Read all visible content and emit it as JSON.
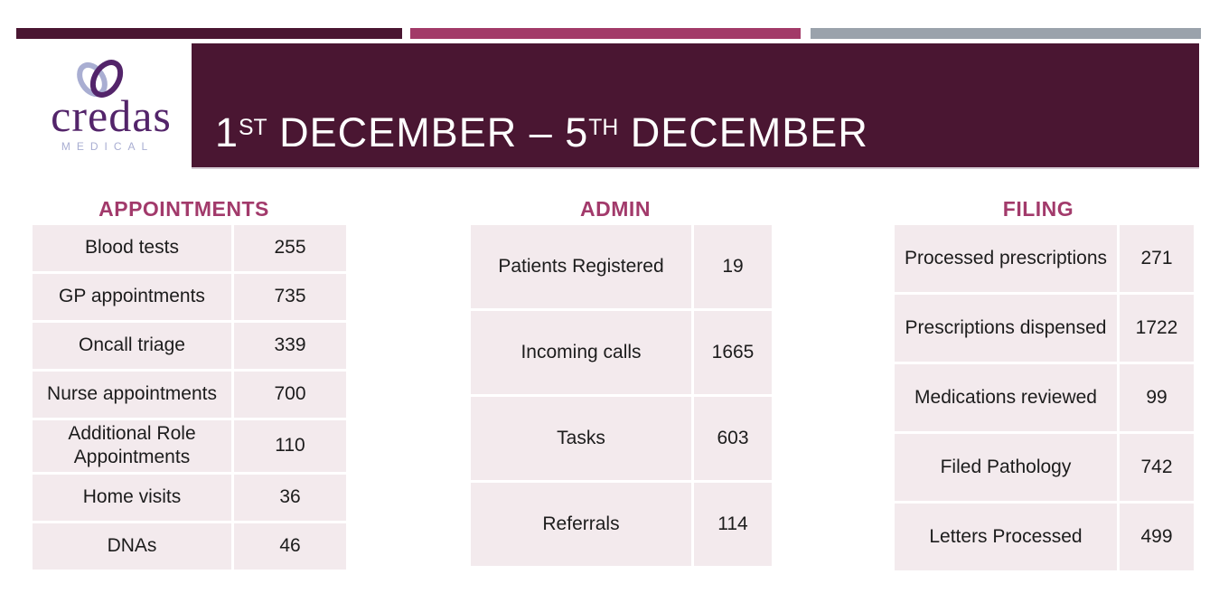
{
  "slide": {
    "title_segments": [
      {
        "text": "1"
      },
      {
        "text": "ST",
        "sup": true
      },
      {
        "text": " DECEMBER – 5"
      },
      {
        "text": "TH",
        "sup": true
      },
      {
        "text": " DECEMBER"
      }
    ]
  },
  "top_bars": [
    {
      "name": "plum-bar",
      "color": "#4a1632"
    },
    {
      "name": "magenta-bar",
      "color": "#a23a68"
    },
    {
      "name": "gray-bar",
      "color": "#9aa2ab"
    }
  ],
  "logo": {
    "wordmark": "credas",
    "subtitle": "MEDICAL",
    "icon": "heart-rings-icon",
    "purple": "#53246a",
    "lavender": "#a9aed2"
  },
  "colors": {
    "band_bg": "#4a1632",
    "accent_heading": "#a23a6b",
    "cell_bg": "#f3eaed",
    "cell_text": "#1c1c1c"
  },
  "sections": [
    {
      "title": "APPOINTMENTS",
      "rows": [
        {
          "label": "Blood tests",
          "value": "255"
        },
        {
          "label": "GP appointments",
          "value": "735"
        },
        {
          "label": "Oncall triage",
          "value": "339"
        },
        {
          "label": "Nurse appointments",
          "value": "700"
        },
        {
          "label": "Additional Role Appointments",
          "value": "110"
        },
        {
          "label": "Home visits",
          "value": "36"
        },
        {
          "label": "DNAs",
          "value": "46"
        }
      ]
    },
    {
      "title": "ADMIN",
      "rows": [
        {
          "label": "Patients Registered",
          "value": "19"
        },
        {
          "label": "Incoming calls",
          "value": "1665"
        },
        {
          "label": "Tasks",
          "value": "603"
        },
        {
          "label": "Referrals",
          "value": "114"
        }
      ]
    },
    {
      "title": "FILING",
      "rows": [
        {
          "label": "Processed prescriptions",
          "value": "271"
        },
        {
          "label": "Prescriptions dispensed",
          "value": "1722"
        },
        {
          "label": "Medications reviewed",
          "value": "99"
        },
        {
          "label": "Filed Pathology",
          "value": "742"
        },
        {
          "label": "Letters Processed",
          "value": "499"
        }
      ]
    }
  ]
}
